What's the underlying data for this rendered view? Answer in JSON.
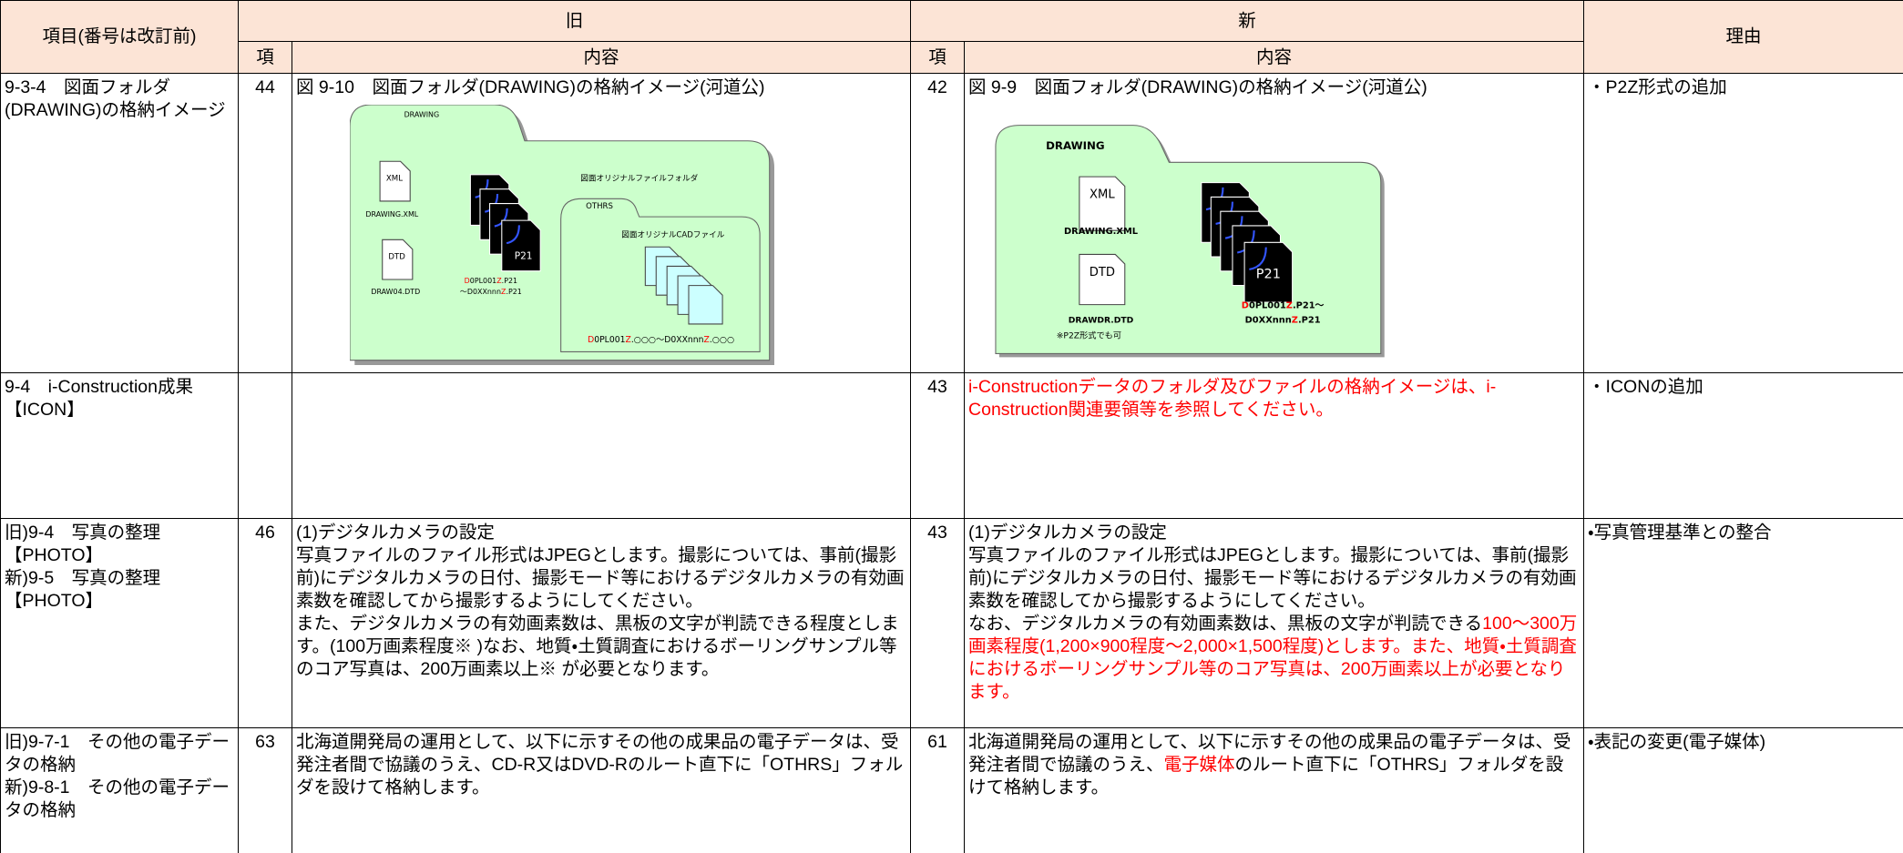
{
  "header": {
    "item": "項目(番号は改訂前)",
    "old": "旧",
    "new": "新",
    "reason": "理由",
    "old_no": "項",
    "old_content": "内容",
    "new_no": "項",
    "new_content": "内容"
  },
  "rows": [
    {
      "item": "9-3-4　図面フォルダ(DRAWING)の格納イメージ",
      "old": {
        "no": "44",
        "content": [
          {
            "text": "図 9-10　図面フォルダ(DRAWING)の格納イメージ(河道公)"
          }
        ],
        "figure": {
          "labels": [
            {
              "text": "DRAWING"
            },
            {
              "text": "XML"
            },
            {
              "text": "DRAWING.XML"
            },
            {
              "text": "DTD"
            },
            {
              "text": "DRAW04.DTD"
            },
            {
              "text": "P21"
            },
            {
              "segments": [
                {
                  "text": "D",
                  "highlight": true
                },
                {
                  "text": "0PL001"
                },
                {
                  "text": "Z",
                  "highlight": true
                },
                {
                  "text": ".P21"
                }
              ]
            },
            {
              "segments": [
                {
                  "text": "～D0XXnnn"
                },
                {
                  "text": "Z",
                  "highlight": true
                },
                {
                  "text": ".P21"
                }
              ]
            },
            {
              "text": "図面オリジナルファイルフォルダ"
            },
            {
              "text": "OTHRS"
            },
            {
              "text": "図面オリジナルCADファイル"
            },
            {
              "segments": [
                {
                  "text": "D",
                  "highlight": true
                },
                {
                  "text": "0PL001"
                },
                {
                  "text": "Z",
                  "highlight": true
                },
                {
                  "text": ".○○○～D0XXnnn"
                },
                {
                  "text": "Z",
                  "highlight": true
                },
                {
                  "text": ".○○○"
                }
              ]
            }
          ]
        }
      },
      "new": {
        "no": "42",
        "content": [
          {
            "text": "図 9-9　図面フォルダ(DRAWING)の格納イメージ(河道公)"
          }
        ],
        "figure": {
          "labels": [
            {
              "text": "DRAWING"
            },
            {
              "text": "XML"
            },
            {
              "text": "DRAWING.XML"
            },
            {
              "text": "DTD"
            },
            {
              "text": "DRAWDR.DTD"
            },
            {
              "text": "※P2Z形式でも可"
            },
            {
              "text": "P21"
            },
            {
              "segments": [
                {
                  "text": "D",
                  "highlight": true
                },
                {
                  "text": "0PL001"
                },
                {
                  "text": "Z",
                  "highlight": true
                },
                {
                  "text": ".P21～"
                }
              ]
            },
            {
              "segments": [
                {
                  "text": "D0XXnnn"
                },
                {
                  "text": "Z",
                  "highlight": true
                },
                {
                  "text": ".P21"
                }
              ]
            }
          ]
        }
      },
      "reason": "・P2Z形式の追加"
    },
    {
      "item": "9-4　i-Construction成果【ICON】",
      "old": {
        "no": null,
        "content": []
      },
      "new": {
        "no": "43",
        "content": [
          {
            "text": "i-Constructionデータのフォルダ及びファイルの格納イメージは、i-Construction関連要領等を参照してください。",
            "highlight": true
          }
        ]
      },
      "reason": "・ICONの追加"
    },
    {
      "item": "旧)9-4　写真の整理\n【PHOTO】\n新)9-5　写真の整理\n【PHOTO】",
      "old": {
        "no": "46",
        "content": [
          {
            "text": "(1)デジタルカメラの設定\n写真ファイルのファイル形式はJPEGとします。撮影については、事前(撮影前)にデジタルカメラの日付、撮影モード等におけるデジタルカメラの有効画素数を確認してから撮影するようにしてください。\nまた、デジタルカメラの有効画素数は、黒板の文字が判読できる程度とします。(100万画素程度※ )なお、地質・土質調査におけるボーリングサンプル等のコア写真は、200万画素以上※ が必要となります。"
          }
        ]
      },
      "new": {
        "no": "43",
        "content": [
          {
            "text": "(1)デジタルカメラの設定\n写真ファイルのファイル形式はJPEGとします。撮影については、事前(撮影前)にデジタルカメラの日付、撮影モード等におけるデジタルカメラの有効画素数を確認してから撮影するようにしてください。\nなお、デジタルカメラの有効画素数は、黒板の文字が判読できる"
          },
          {
            "text": "100～300万画素程度(1,200×900程度～2,000×1,500程度)とします。また、地質・土質調査におけるボーリングサンプル等のコア写真は、200万画素以上が必要となります。",
            "highlight": true
          }
        ]
      },
      "reason": "・写真管理基準との整合"
    },
    {
      "item": "旧)9-7-1　その他の電子データの格納\n新)9-8-1　その他の電子データの格納",
      "old": {
        "no": "63",
        "content": [
          {
            "text": "北海道開発局の運用として、以下に示すその他の成果品の電子データは、受発注者間で協議のうえ、CD-R又はDVD-Rのルート直下に「OTHRS」フォルダを設けて格納します。"
          }
        ]
      },
      "new": {
        "no": "61",
        "content": [
          {
            "text": "北海道開発局の運用として、以下に示すその他の成果品の電子データは、受発注者間で協議のうえ、"
          },
          {
            "text": "電子媒体",
            "highlight": true
          },
          {
            "text": "のルート直下に「OTHRS」フォルダを設けて格納します。"
          }
        ]
      },
      "reason": "・表記の変更(電子媒体)"
    }
  ]
}
